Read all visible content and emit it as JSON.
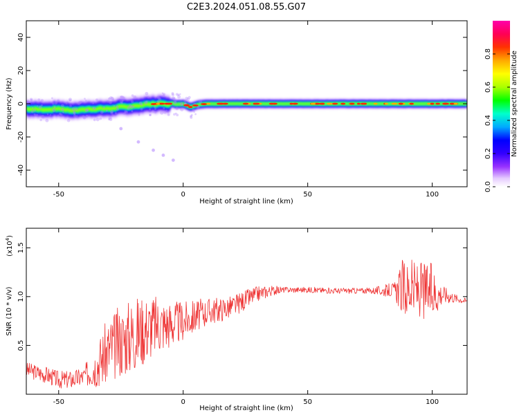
{
  "title": "C2E3.2024.051.08.55.G07",
  "chart_data": [
    {
      "type": "heatmap",
      "xlabel": "Height of straight line (km)",
      "ylabel": "Frequency (Hz)",
      "xlim": [
        -63,
        114
      ],
      "ylim": [
        -50,
        50
      ],
      "xticks": [
        -50,
        0,
        50,
        100
      ],
      "yticks": [
        -40,
        -20,
        0,
        20,
        40
      ],
      "colorbar": {
        "label": "Normalized spectral amplitude",
        "range": [
          0,
          1
        ],
        "ticks": [
          0.0,
          0.2,
          0.4,
          0.6,
          0.8
        ],
        "tick_labels": [
          "0.0",
          "0.2",
          "0.4",
          "0.6",
          "0.8"
        ],
        "colormap": [
          "#ffffff",
          "#e6ccff",
          "#9933ff",
          "#3300ff",
          "#0000ff",
          "#00aaff",
          "#00ffcc",
          "#00ff00",
          "#aaff00",
          "#ffff00",
          "#ffaa00",
          "#ff3300",
          "#ff0055",
          "#ff00aa"
        ]
      },
      "ridge": [
        [
          -63,
          -3
        ],
        [
          -55,
          -3.5
        ],
        [
          -50,
          -3
        ],
        [
          -45,
          -4
        ],
        [
          -40,
          -3.5
        ],
        [
          -35,
          -3
        ],
        [
          -30,
          -3
        ],
        [
          -25,
          -2
        ],
        [
          -20,
          -1.5
        ],
        [
          -15,
          -0.5
        ],
        [
          -10,
          0
        ],
        [
          -5,
          0
        ],
        [
          0,
          0
        ],
        [
          3,
          -2
        ],
        [
          6,
          -0.5
        ],
        [
          10,
          0
        ],
        [
          20,
          0
        ],
        [
          40,
          0
        ],
        [
          60,
          0
        ],
        [
          80,
          0
        ],
        [
          100,
          0
        ],
        [
          114,
          0
        ]
      ],
      "faint_trail": [
        [
          -25,
          -15
        ],
        [
          -18,
          -23
        ],
        [
          -12,
          -28
        ],
        [
          -8,
          -31
        ],
        [
          -4,
          -34
        ]
      ]
    },
    {
      "type": "line",
      "xlabel": "Height of straight line (km)",
      "ylabel": "SNR (10 * v/v)",
      "scale_note": "(x10",
      "scale_exp": "4",
      "scale_close": ")",
      "xlim": [
        -63,
        114
      ],
      "ylim": [
        0,
        1.7
      ],
      "xticks": [
        -50,
        0,
        50,
        100
      ],
      "yticks": [
        0.5,
        1.0,
        1.5
      ],
      "ytick_labels": [
        "0.5",
        "1.0",
        "1.5"
      ],
      "series": [
        {
          "color": "#ee3333",
          "points": [
            [
              -63,
              0.25
            ],
            [
              -55,
              0.2
            ],
            [
              -50,
              0.15
            ],
            [
              -45,
              0.15
            ],
            [
              -40,
              0.18
            ],
            [
              -35,
              0.3
            ],
            [
              -30,
              0.45
            ],
            [
              -25,
              0.55
            ],
            [
              -20,
              0.62
            ],
            [
              -15,
              0.68
            ],
            [
              -10,
              0.72
            ],
            [
              -5,
              0.72
            ],
            [
              0,
              0.75
            ],
            [
              5,
              0.8
            ],
            [
              10,
              0.85
            ],
            [
              15,
              0.87
            ],
            [
              20,
              0.9
            ],
            [
              25,
              0.97
            ],
            [
              30,
              1.03
            ],
            [
              35,
              1.06
            ],
            [
              40,
              1.07
            ],
            [
              50,
              1.07
            ],
            [
              60,
              1.06
            ],
            [
              70,
              1.06
            ],
            [
              80,
              1.06
            ],
            [
              85,
              1.07
            ],
            [
              90,
              1.08
            ],
            [
              95,
              1.07
            ],
            [
              100,
              1.04
            ],
            [
              105,
              1.02
            ],
            [
              110,
              0.98
            ],
            [
              114,
              0.95
            ]
          ],
          "noise": [
            [
              -63,
              0.08
            ],
            [
              -40,
              0.1
            ],
            [
              -30,
              0.35
            ],
            [
              -20,
              0.4
            ],
            [
              -10,
              0.3
            ],
            [
              0,
              0.2
            ],
            [
              10,
              0.14
            ],
            [
              25,
              0.1
            ],
            [
              30,
              0.08
            ],
            [
              40,
              0.03
            ],
            [
              75,
              0.03
            ],
            [
              85,
              0.08
            ],
            [
              88,
              0.3
            ],
            [
              100,
              0.3
            ],
            [
              104,
              0.1
            ],
            [
              110,
              0.04
            ],
            [
              114,
              0.03
            ]
          ]
        }
      ]
    }
  ]
}
